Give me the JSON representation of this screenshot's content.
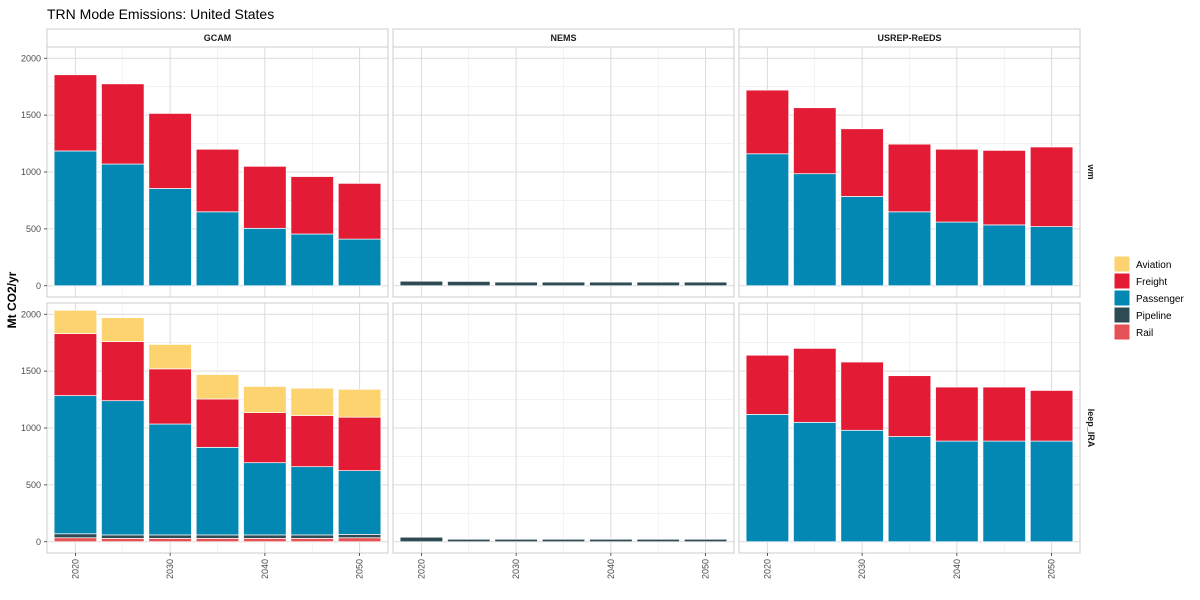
{
  "chart_data": {
    "type": "bar",
    "stacked": true,
    "title": "TRN Mode Emissions: United States",
    "ylabel": "Mt CO2/yr",
    "xlabel": "",
    "ylim": [
      0,
      2000
    ],
    "y_ticks": [
      0,
      500,
      1000,
      1500,
      2000
    ],
    "x": [
      2020,
      2025,
      2030,
      2035,
      2040,
      2045,
      2050
    ],
    "x_tick_labels": [
      "2020",
      "2030",
      "2040",
      "2050"
    ],
    "grid": true,
    "legend_position": "right",
    "columns": [
      "GCAM",
      "NEMS",
      "USREP-ReEDS"
    ],
    "rows": [
      "wm",
      "leep_IRA"
    ],
    "series_order": [
      "Rail",
      "Pipeline",
      "Passenger",
      "Freight",
      "Aviation"
    ],
    "legend": [
      {
        "name": "Aviation",
        "color": "#FDD36F"
      },
      {
        "name": "Freight",
        "color": "#E41B35"
      },
      {
        "name": "Passenger",
        "color": "#0388B4"
      },
      {
        "name": "Pipeline",
        "color": "#2E4A52"
      },
      {
        "name": "Rail",
        "color": "#E45256"
      }
    ],
    "panels": [
      {
        "column": "GCAM",
        "row": "wm",
        "series": [
          {
            "name": "Rail",
            "values": [
              0,
              0,
              0,
              0,
              0,
              0,
              0
            ]
          },
          {
            "name": "Pipeline",
            "values": [
              0,
              0,
              0,
              0,
              0,
              0,
              0
            ]
          },
          {
            "name": "Passenger",
            "values": [
              1185,
              1070,
              855,
              650,
              505,
              455,
              410
            ]
          },
          {
            "name": "Freight",
            "values": [
              670,
              705,
              660,
              550,
              545,
              505,
              490
            ]
          },
          {
            "name": "Aviation",
            "values": [
              0,
              0,
              0,
              0,
              0,
              0,
              0
            ]
          }
        ]
      },
      {
        "column": "NEMS",
        "row": "wm",
        "series": [
          {
            "name": "Rail",
            "values": [
              0,
              0,
              0,
              0,
              0,
              0,
              0
            ]
          },
          {
            "name": "Pipeline",
            "values": [
              40,
              38,
              32,
              32,
              32,
              32,
              32
            ]
          },
          {
            "name": "Passenger",
            "values": [
              0,
              0,
              0,
              0,
              0,
              0,
              0
            ]
          },
          {
            "name": "Freight",
            "values": [
              0,
              0,
              0,
              0,
              0,
              0,
              0
            ]
          },
          {
            "name": "Aviation",
            "values": [
              0,
              0,
              0,
              0,
              0,
              0,
              0
            ]
          }
        ]
      },
      {
        "column": "USREP-ReEDS",
        "row": "wm",
        "series": [
          {
            "name": "Rail",
            "values": [
              0,
              0,
              0,
              0,
              0,
              0,
              0
            ]
          },
          {
            "name": "Pipeline",
            "values": [
              0,
              0,
              0,
              0,
              0,
              0,
              0
            ]
          },
          {
            "name": "Passenger",
            "values": [
              1160,
              985,
              785,
              650,
              560,
              535,
              520
            ]
          },
          {
            "name": "Freight",
            "values": [
              560,
              580,
              595,
              595,
              640,
              655,
              700
            ]
          },
          {
            "name": "Aviation",
            "values": [
              0,
              0,
              0,
              0,
              0,
              0,
              0
            ]
          }
        ]
      },
      {
        "column": "GCAM",
        "row": "leep_IRA",
        "series": [
          {
            "name": "Rail",
            "values": [
              35,
              30,
              30,
              30,
              30,
              30,
              35
            ]
          },
          {
            "name": "Pipeline",
            "values": [
              35,
              30,
              30,
              30,
              30,
              30,
              30
            ]
          },
          {
            "name": "Passenger",
            "values": [
              1215,
              1180,
              975,
              770,
              635,
              600,
              560
            ]
          },
          {
            "name": "Freight",
            "values": [
              545,
              520,
              485,
              425,
              440,
              450,
              470
            ]
          },
          {
            "name": "Aviation",
            "values": [
              205,
              210,
              215,
              215,
              230,
              240,
              245
            ]
          }
        ]
      },
      {
        "column": "NEMS",
        "row": "leep_IRA",
        "series": [
          {
            "name": "Rail",
            "values": [
              0,
              0,
              0,
              0,
              0,
              0,
              0
            ]
          },
          {
            "name": "Pipeline",
            "values": [
              40,
              22,
              22,
              22,
              22,
              22,
              22
            ]
          },
          {
            "name": "Passenger",
            "values": [
              0,
              0,
              0,
              0,
              0,
              0,
              0
            ]
          },
          {
            "name": "Freight",
            "values": [
              0,
              0,
              0,
              0,
              0,
              0,
              0
            ]
          },
          {
            "name": "Aviation",
            "values": [
              0,
              0,
              0,
              0,
              0,
              0,
              0
            ]
          }
        ]
      },
      {
        "column": "USREP-ReEDS",
        "row": "leep_IRA",
        "series": [
          {
            "name": "Rail",
            "values": [
              0,
              0,
              0,
              0,
              0,
              0,
              0
            ]
          },
          {
            "name": "Pipeline",
            "values": [
              0,
              0,
              0,
              0,
              0,
              0,
              0
            ]
          },
          {
            "name": "Passenger",
            "values": [
              1120,
              1050,
              980,
              925,
              885,
              885,
              885
            ]
          },
          {
            "name": "Freight",
            "values": [
              520,
              650,
              600,
              535,
              475,
              475,
              445
            ]
          },
          {
            "name": "Aviation",
            "values": [
              0,
              0,
              0,
              0,
              0,
              0,
              0
            ]
          }
        ]
      }
    ]
  }
}
